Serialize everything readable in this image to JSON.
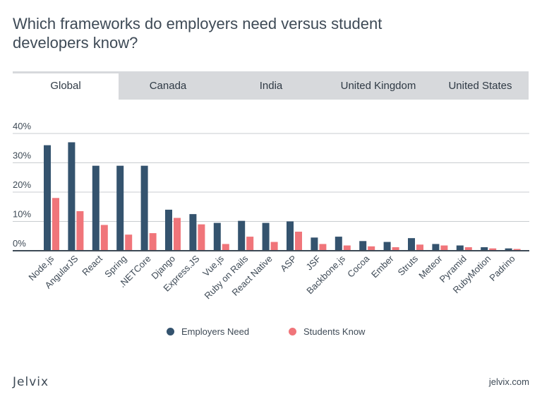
{
  "title": "Which frameworks do employers need versus student developers know?",
  "tabs": [
    "Global",
    "Canada",
    "India",
    "United Kingdom",
    "United States"
  ],
  "active_tab": "Global",
  "brand": {
    "logo": "Jelvix",
    "site": "jelvix.com"
  },
  "colors": {
    "employers": "#34536e",
    "students": "#f0757a",
    "grid": "#c9ccd0",
    "text": "#3e4a56"
  },
  "legend": [
    {
      "label": "Employers Need",
      "color": "#34536e"
    },
    {
      "label": "Students Know",
      "color": "#f0757a"
    }
  ],
  "chart_data": {
    "type": "bar",
    "categories": [
      "Node.js",
      "AngularJS",
      "React",
      "Spring",
      ".NETCore",
      "Django",
      "Express.JS",
      "Vue.js",
      "Ruby on Rails",
      "React Native",
      "ASP",
      "JSF",
      "Backbone.js",
      "Cocoa",
      "Ember",
      "Struts",
      "Meteor",
      "Pyramid",
      "RubyMotion",
      "Padrino"
    ],
    "series": [
      {
        "name": "Employers Need",
        "values": [
          36,
          37,
          29,
          29,
          29,
          14,
          12.5,
          9.5,
          10.2,
          9.5,
          10,
          4.5,
          4.8,
          3.3,
          3,
          4.3,
          2.3,
          1.8,
          1.2,
          0.8
        ]
      },
      {
        "name": "Students Know",
        "values": [
          18,
          13.5,
          8.8,
          5.5,
          6,
          11.2,
          9,
          2.3,
          4.8,
          3,
          6.5,
          2.3,
          1.8,
          1.5,
          1.2,
          2.1,
          1.8,
          1.2,
          0.8,
          0.6
        ]
      }
    ],
    "ytick_labels": [
      "0%",
      "10%",
      "20%",
      "30%",
      "40%"
    ],
    "yticks": [
      0,
      10,
      20,
      30,
      40
    ],
    "ylim": [
      0,
      40
    ],
    "grid": true,
    "legend_position": "bottom-center"
  }
}
